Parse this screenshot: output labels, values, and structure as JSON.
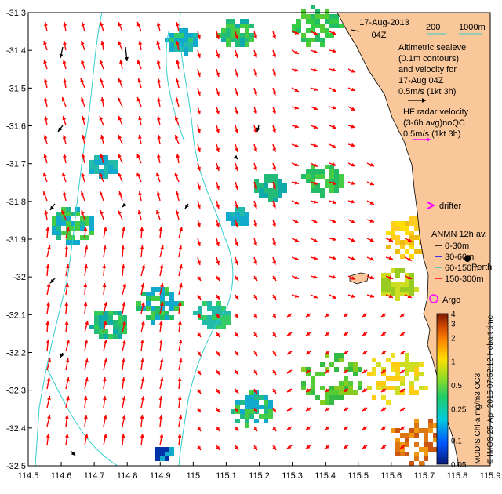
{
  "map": {
    "date_line1": "17-Aug-2013",
    "date_line2": "04Z",
    "depth_label_200": "200",
    "depth_label_1000": "1000m",
    "altimetry_lines": [
      "Altimetric sealevel",
      "(0.1m contours)",
      "and velocity for",
      "17-Aug 04Z",
      "0.5m/s (1kt 3h)"
    ],
    "hf_lines": [
      "HF radar velocity",
      "(3-6h avg)noQC",
      "0.5m/s (1kt 3h)"
    ],
    "drifter_label": "drifter",
    "anmn_title": "ANMN 12h av.",
    "anmn_items": [
      "0-30m",
      "30-60m",
      "60-150m",
      "150-300m"
    ],
    "perth_label": "Perth",
    "argo_label": "Argo",
    "colorbar_title": "MODIS Chl-a mg/m3 OC3",
    "colorbar_ticks": [
      "4",
      "3",
      "2",
      "1",
      "0.5",
      "0.25",
      "0.1",
      "0.05"
    ],
    "credit": "© IMOS 25-Apr-2015 07:52:12 Hobart time",
    "lon_ticks": [
      "114.5",
      "114.6",
      "114.7",
      "114.8",
      "114.9",
      "115",
      "115.1",
      "115.2",
      "115.3",
      "115.4",
      "115.5",
      "115.6",
      "115.7",
      "115.8",
      "115.9"
    ],
    "lat_ticks": [
      "-31.3",
      "-31.4",
      "-31.5",
      "-31.6",
      "-31.7",
      "-31.8",
      "-31.9",
      "-32",
      "-32.1",
      "-32.2",
      "-32.3",
      "-32.4",
      "-32.5"
    ],
    "colors": {
      "land": "#f9c79a",
      "ocean": "#ffffff",
      "arrows": "#ff0000",
      "contour": "#33cccc",
      "drifter": "#ff00ff"
    }
  }
}
